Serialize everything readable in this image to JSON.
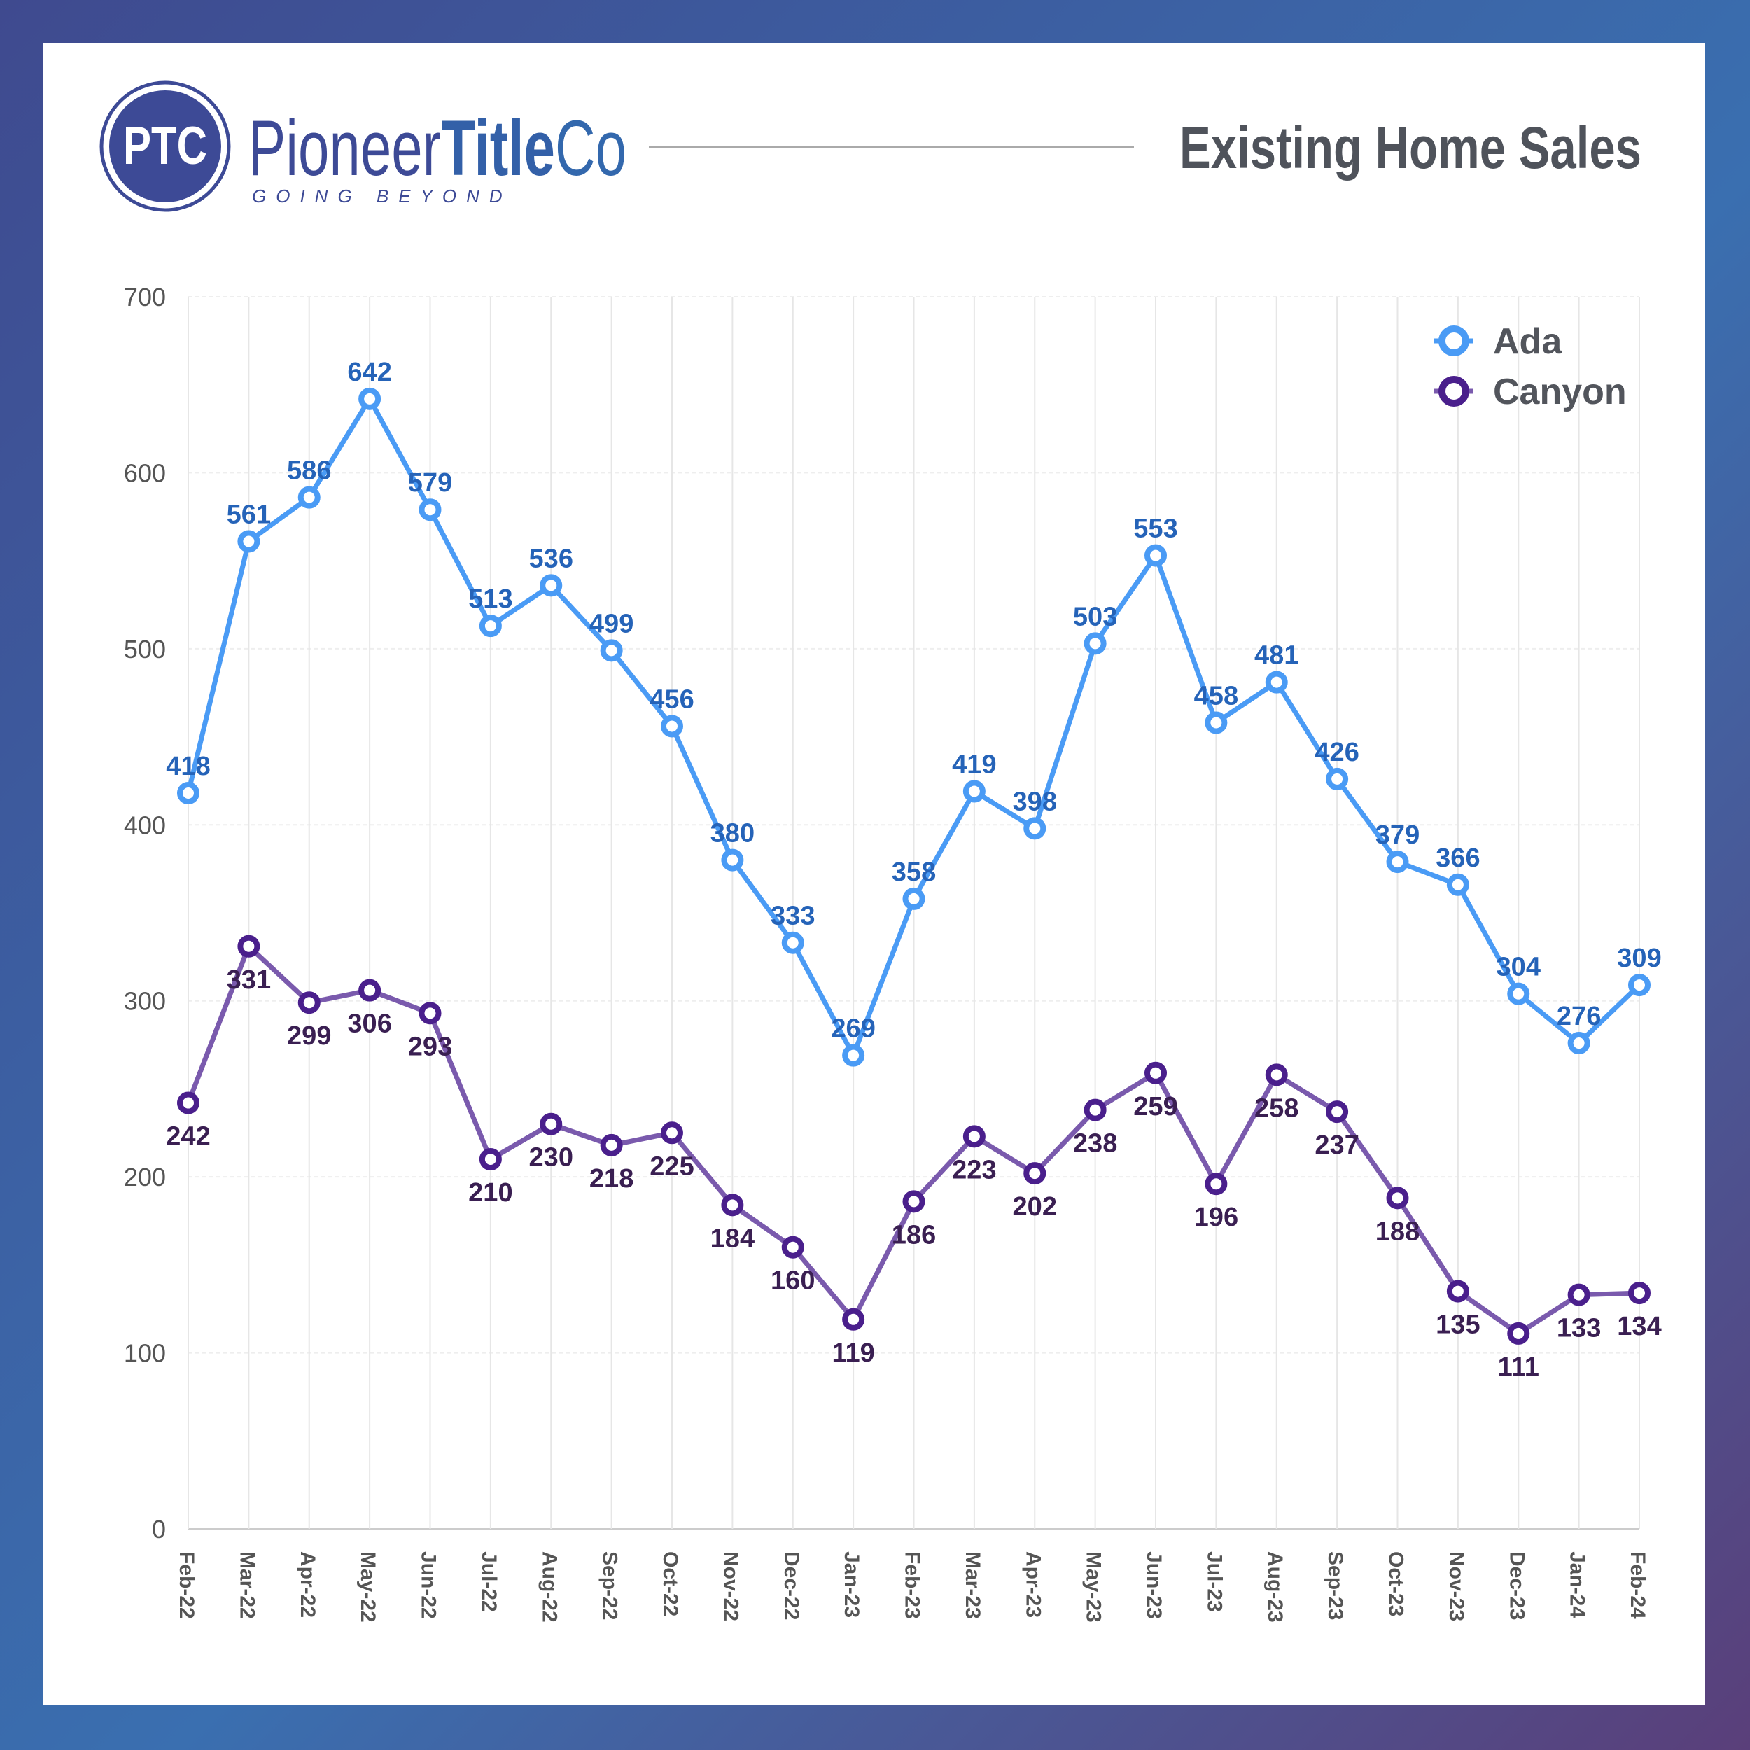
{
  "header": {
    "logo_monogram": "PTC",
    "brand_light": "Pioneer",
    "brand_bold": "Title",
    "brand_end": "Co",
    "tagline": "GOING BEYOND",
    "title": "Existing Home Sales"
  },
  "colors": {
    "ada": "#4a9bf5",
    "ada_label": "#2563b8",
    "canyon": "#4a1f8c",
    "canyon_line": "#7a5aad",
    "canyon_label": "#3a1f52",
    "brand": "#3d4a96",
    "title": "#4f535b"
  },
  "chart_data": {
    "type": "line",
    "title": "Existing Home Sales",
    "categories": [
      "Feb-22",
      "Mar-22",
      "Apr-22",
      "May-22",
      "Jun-22",
      "Jul-22",
      "Aug-22",
      "Sep-22",
      "Oct-22",
      "Nov-22",
      "Dec-22",
      "Jan-23",
      "Feb-23",
      "Mar-23",
      "Apr-23",
      "May-23",
      "Jun-23",
      "Jul-23",
      "Aug-23",
      "Sep-23",
      "Oct-23",
      "Nov-23",
      "Dec-23",
      "Jan-24",
      "Feb-24"
    ],
    "series": [
      {
        "name": "Ada",
        "values": [
          418,
          561,
          586,
          642,
          579,
          513,
          536,
          499,
          456,
          380,
          333,
          269,
          358,
          419,
          398,
          503,
          553,
          458,
          481,
          426,
          379,
          366,
          304,
          276,
          309
        ]
      },
      {
        "name": "Canyon",
        "values": [
          242,
          331,
          299,
          306,
          293,
          210,
          230,
          218,
          225,
          184,
          160,
          119,
          186,
          223,
          202,
          238,
          259,
          196,
          258,
          237,
          188,
          135,
          111,
          133,
          134
        ]
      }
    ],
    "ylim": [
      0,
      700
    ],
    "yticks": [
      0,
      100,
      200,
      300,
      400,
      500,
      600,
      700
    ],
    "grid": true,
    "legend": "top-right",
    "xlabel": "",
    "ylabel": ""
  }
}
